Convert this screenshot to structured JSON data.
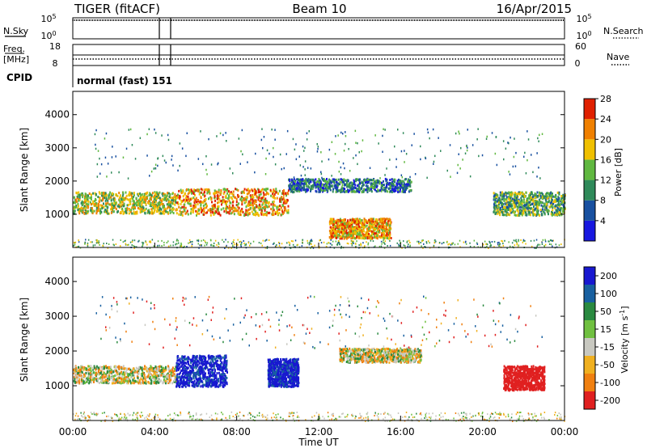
{
  "header": {
    "radar": "TIGER (fitACF)",
    "beam": "Beam 10",
    "date": "16/Apr/2015"
  },
  "panels": {
    "nsky": {
      "left_label": "N.Sky",
      "right_label": "N.Search",
      "left_ticks": [
        "10^5",
        "10^0"
      ],
      "right_ticks": [
        "10^5",
        "10^0"
      ]
    },
    "freq": {
      "left_label_1": "Freq.",
      "left_label_2": "[MHz]",
      "right_label": "Nave",
      "left_ticks": [
        "18",
        "8"
      ],
      "right_ticks": [
        "60",
        "0"
      ]
    },
    "cpid": {
      "label": "CPID",
      "value": "normal (fast) 151"
    }
  },
  "chart_data": [
    {
      "type": "heatmap",
      "title": "",
      "ylabel": "Slant Range [km]",
      "xlabel": "",
      "xlim": [
        "00:00",
        "24:00"
      ],
      "ylim": [
        0,
        4700
      ],
      "y_ticks": [
        "1000",
        "2000",
        "3000",
        "4000"
      ],
      "colorbar": {
        "label": "Power [dB]",
        "ticks": [
          "4",
          "8",
          "12",
          "16",
          "20",
          "24",
          "28"
        ],
        "colors": [
          "#1818e0",
          "#1850a0",
          "#2f8a5a",
          "#60b840",
          "#f0c000",
          "#f08000",
          "#e02000"
        ]
      },
      "bands": [
        {
          "t": [
            0.0,
            5.0
          ],
          "range": [
            1050,
            1700
          ],
          "value": 16
        },
        {
          "t": [
            5.0,
            10.5
          ],
          "range": [
            1000,
            1800
          ],
          "value": 20
        },
        {
          "t": [
            10.5,
            16.5
          ],
          "range": [
            1700,
            2100
          ],
          "value": 8
        },
        {
          "t": [
            12.5,
            15.5
          ],
          "range": [
            300,
            900
          ],
          "value": 20
        },
        {
          "t": [
            20.5,
            24.0
          ],
          "range": [
            1000,
            1700
          ],
          "value": 12
        }
      ]
    },
    {
      "type": "heatmap",
      "title": "",
      "ylabel": "Slant Range [km]",
      "xlabel": "Time UT",
      "xlim": [
        "00:00",
        "24:00"
      ],
      "ylim": [
        0,
        4700
      ],
      "y_ticks": [
        "1000",
        "2000",
        "3000",
        "4000"
      ],
      "x_ticks": [
        "00:00",
        "04:00",
        "08:00",
        "12:00",
        "16:00",
        "20:00",
        "00:00"
      ],
      "colorbar": {
        "label": "Velocity [m s^-1]",
        "ticks": [
          "200",
          "100",
          "50",
          "15",
          "-15",
          "-50",
          "-100",
          "-200"
        ],
        "colors": [
          "#1818d0",
          "#1860a0",
          "#2a8a40",
          "#70c040",
          "#c8c8c0",
          "#f0b020",
          "#f08010",
          "#e02020"
        ]
      },
      "bands": [
        {
          "t": [
            0.0,
            5.0
          ],
          "range": [
            1100,
            1600
          ],
          "value": 0
        },
        {
          "t": [
            5.0,
            7.5
          ],
          "range": [
            1000,
            1900
          ],
          "value": 180
        },
        {
          "t": [
            9.5,
            11.0
          ],
          "range": [
            1000,
            1800
          ],
          "value": 180
        },
        {
          "t": [
            13.0,
            17.0
          ],
          "range": [
            1700,
            2100
          ],
          "value": 0
        },
        {
          "t": [
            21.0,
            23.0
          ],
          "range": [
            900,
            1600
          ],
          "value": -150
        }
      ]
    }
  ]
}
